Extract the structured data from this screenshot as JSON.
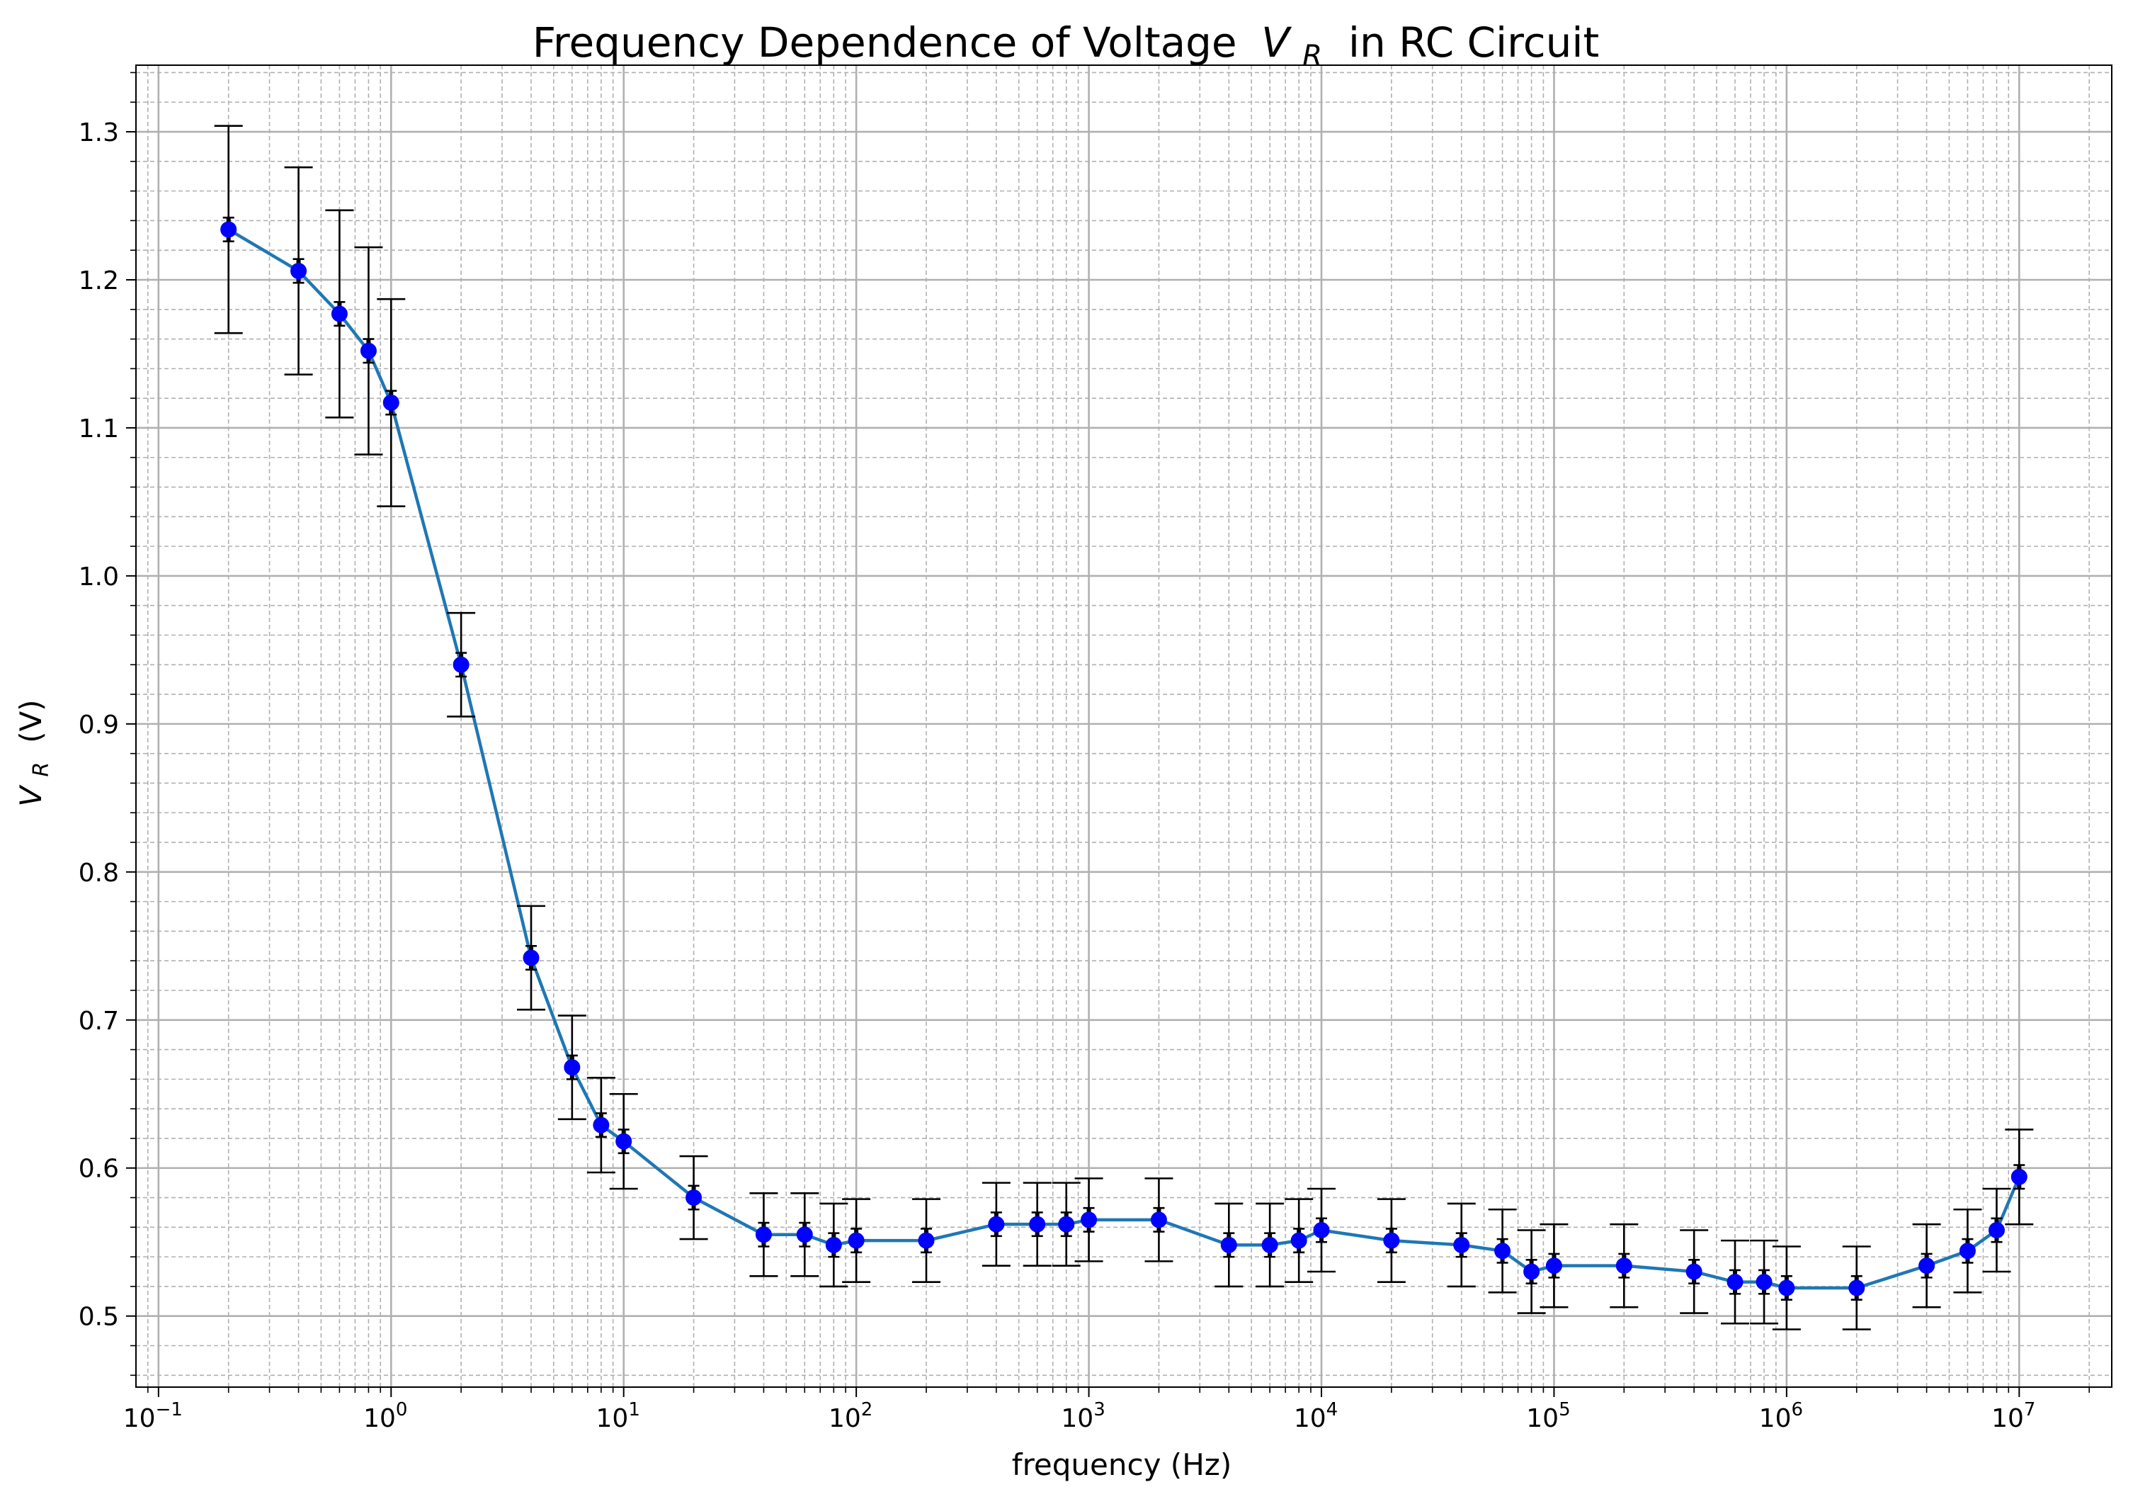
{
  "chart_data": {
    "type": "scatter",
    "title": "Frequency Dependence of Voltage",
    "title_symbol": "V",
    "title_symbol_sub": "R",
    "title_suffix": " in RC Circuit",
    "xlabel": "frequency (Hz)",
    "ylabel_symbol": "V",
    "ylabel_sub": "R",
    "ylabel_unit": " (V)",
    "xscale": "log",
    "xlim": [
      0.08,
      25000000
    ],
    "ylim": [
      0.452,
      1.345
    ],
    "x_ticks": [
      {
        "base": "10",
        "exp": "−1",
        "value": 0.1
      },
      {
        "base": "10",
        "exp": "0",
        "value": 1
      },
      {
        "base": "10",
        "exp": "1",
        "value": 10
      },
      {
        "base": "10",
        "exp": "2",
        "value": 100
      },
      {
        "base": "10",
        "exp": "3",
        "value": 1000
      },
      {
        "base": "10",
        "exp": "4",
        "value": 10000
      },
      {
        "base": "10",
        "exp": "5",
        "value": 100000
      },
      {
        "base": "10",
        "exp": "6",
        "value": 1000000
      },
      {
        "base": "10",
        "exp": "7",
        "value": 10000000
      }
    ],
    "y_ticks": [
      {
        "label": "0.5",
        "value": 0.5
      },
      {
        "label": "0.6",
        "value": 0.6
      },
      {
        "label": "0.7",
        "value": 0.7
      },
      {
        "label": "0.8",
        "value": 0.8
      },
      {
        "label": "0.9",
        "value": 0.9
      },
      {
        "label": "1.0",
        "value": 1.0
      },
      {
        "label": "1.1",
        "value": 1.1
      },
      {
        "label": "1.2",
        "value": 1.2
      },
      {
        "label": "1.3",
        "value": 1.3
      }
    ],
    "grid": "major solid and minor dashed",
    "legend": "none",
    "y_error": 0.028,
    "series": [
      {
        "line_color": "#1f77b4",
        "marker_color": "#0000ff",
        "errorbar_color": "#000000",
        "points": [
          {
            "x": 0.2,
            "y": 1.234,
            "err": 0.07
          },
          {
            "x": 0.4,
            "y": 1.206,
            "err": 0.07
          },
          {
            "x": 0.6,
            "y": 1.177,
            "err": 0.07
          },
          {
            "x": 0.8,
            "y": 1.152,
            "err": 0.07
          },
          {
            "x": 1,
            "y": 1.117,
            "err": 0.07
          },
          {
            "x": 2,
            "y": 0.94,
            "err": 0.035
          },
          {
            "x": 4,
            "y": 0.742,
            "err": 0.035
          },
          {
            "x": 6,
            "y": 0.668,
            "err": 0.035
          },
          {
            "x": 8,
            "y": 0.629,
            "err": 0.032
          },
          {
            "x": 10,
            "y": 0.618,
            "err": 0.032
          },
          {
            "x": 20,
            "y": 0.58,
            "err": 0.028
          },
          {
            "x": 40,
            "y": 0.555,
            "err": 0.028
          },
          {
            "x": 60,
            "y": 0.555,
            "err": 0.028
          },
          {
            "x": 80,
            "y": 0.548,
            "err": 0.028
          },
          {
            "x": 100,
            "y": 0.551,
            "err": 0.028
          },
          {
            "x": 200,
            "y": 0.551,
            "err": 0.028
          },
          {
            "x": 400,
            "y": 0.562,
            "err": 0.028
          },
          {
            "x": 600,
            "y": 0.562,
            "err": 0.028
          },
          {
            "x": 800,
            "y": 0.562,
            "err": 0.028
          },
          {
            "x": 1000,
            "y": 0.565,
            "err": 0.028
          },
          {
            "x": 2000,
            "y": 0.565,
            "err": 0.028
          },
          {
            "x": 4000,
            "y": 0.548,
            "err": 0.028
          },
          {
            "x": 6000,
            "y": 0.548,
            "err": 0.028
          },
          {
            "x": 8000,
            "y": 0.551,
            "err": 0.028
          },
          {
            "x": 10000,
            "y": 0.558,
            "err": 0.028
          },
          {
            "x": 20000,
            "y": 0.551,
            "err": 0.028
          },
          {
            "x": 40000,
            "y": 0.548,
            "err": 0.028
          },
          {
            "x": 60000,
            "y": 0.544,
            "err": 0.028
          },
          {
            "x": 80000,
            "y": 0.53,
            "err": 0.028
          },
          {
            "x": 100000,
            "y": 0.534,
            "err": 0.028
          },
          {
            "x": 200000,
            "y": 0.534,
            "err": 0.028
          },
          {
            "x": 400000,
            "y": 0.53,
            "err": 0.028
          },
          {
            "x": 600000,
            "y": 0.523,
            "err": 0.028
          },
          {
            "x": 800000,
            "y": 0.523,
            "err": 0.028
          },
          {
            "x": 1000000,
            "y": 0.519,
            "err": 0.028
          },
          {
            "x": 2000000,
            "y": 0.519,
            "err": 0.028
          },
          {
            "x": 4000000,
            "y": 0.534,
            "err": 0.028
          },
          {
            "x": 6000000,
            "y": 0.544,
            "err": 0.028
          },
          {
            "x": 8000000,
            "y": 0.558,
            "err": 0.028
          },
          {
            "x": 10000000,
            "y": 0.594,
            "err": 0.032
          }
        ]
      }
    ]
  }
}
